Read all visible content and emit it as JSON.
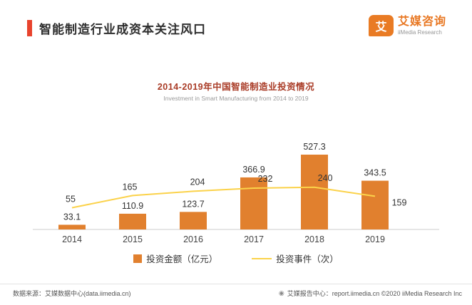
{
  "header": {
    "title": "智能制造行业成资本关注风口"
  },
  "logo": {
    "icon_glyph": "艾",
    "brand": "艾媒咨询",
    "brand_en": "iiMedia Research"
  },
  "chart": {
    "title": "2014-2019年中国智能制造业投资情况",
    "subtitle": "Investment in Smart Manufacturing from 2014 to 2019"
  },
  "chart_data": {
    "type": "bar",
    "title": "2014-2019年中国智能制造业投资情况",
    "subtitle": "Investment in Smart Manufacturing from 2014 to 2019",
    "categories": [
      "2014",
      "2015",
      "2016",
      "2017",
      "2018",
      "2019"
    ],
    "series": [
      {
        "name": "投资金额（亿元）",
        "type": "bar",
        "color": "#E1802E",
        "values": [
          33.1,
          110.9,
          123.7,
          366.9,
          527.3,
          343.5
        ]
      },
      {
        "name": "投资事件（次）",
        "type": "line",
        "color": "#FBD24A",
        "values": [
          55,
          165,
          204,
          232,
          240,
          159
        ]
      }
    ],
    "xlabel": "",
    "ylabel": "",
    "bar_ylim": [
      0,
      560
    ],
    "line_ylim": [
      0,
      300
    ],
    "grid": false,
    "legend_position": "bottom"
  },
  "footer": {
    "icon_glyph": "◉",
    "source": "数据来源：艾媒数据中心(data.iimedia.cn)",
    "copyright": "艾媒报告中心：report.iimedia.cn ©2020 iiMedia Research Inc"
  },
  "colors": {
    "accent": "#E8432D",
    "bar": "#E1802E",
    "line": "#FBD24A",
    "chart_title": "#A93B26",
    "brand": "#E87722"
  }
}
